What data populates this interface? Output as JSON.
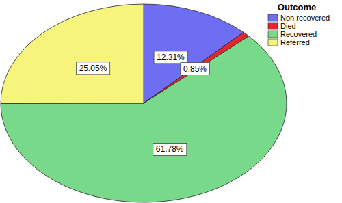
{
  "chart_data": {
    "type": "pie",
    "title": "Outcome",
    "categories": [
      "Non recovered",
      "Died",
      "Recovered",
      "Referred"
    ],
    "values": [
      12.31,
      0.85,
      61.78,
      25.05
    ],
    "value_labels": [
      "12.31%",
      "0.85%",
      "61.78%",
      "25.05%"
    ],
    "colors": [
      "#6e6ef2",
      "#e3262f",
      "#78d98a",
      "#f7f47e"
    ],
    "data_labels": true,
    "legend": "top-right"
  }
}
